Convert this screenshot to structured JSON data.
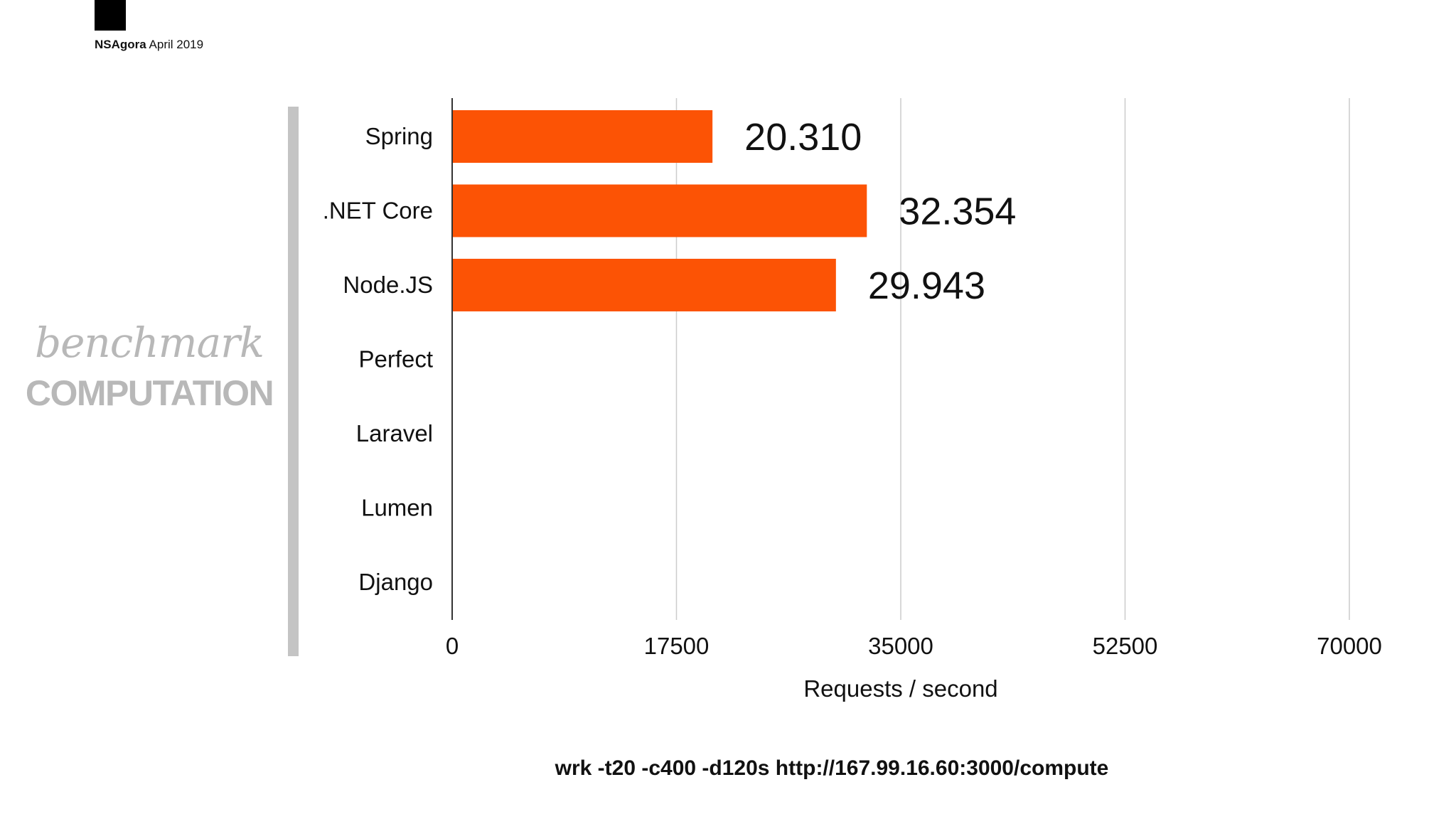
{
  "header": {
    "brand": "NSAgora",
    "date": "April 2019"
  },
  "title": {
    "script": "benchmark",
    "main": "COMPUTATION"
  },
  "command": "wrk -t20 -c400 -d120s http://167.99.16.60:3000/compute",
  "colors": {
    "bar": "#fc5305",
    "grid": "#cccccc",
    "axis": "#333333",
    "side_bar": "#c4c4c4",
    "title": "#b8b8b8"
  },
  "chart_data": {
    "type": "bar",
    "orientation": "horizontal",
    "categories": [
      "Spring",
      ".NET Core",
      "Node.JS",
      "Perfect",
      "Laravel",
      "Lumen",
      "Django"
    ],
    "values": [
      20310,
      32354,
      29943,
      null,
      null,
      null,
      null
    ],
    "value_labels": [
      "20.310",
      "32.354",
      "29.943",
      "",
      "",
      "",
      ""
    ],
    "xlabel": "Requests / second",
    "ylabel": "",
    "xlim": [
      0,
      70000
    ],
    "xticks": [
      0,
      17500,
      35000,
      52500,
      70000
    ],
    "grid": true
  }
}
